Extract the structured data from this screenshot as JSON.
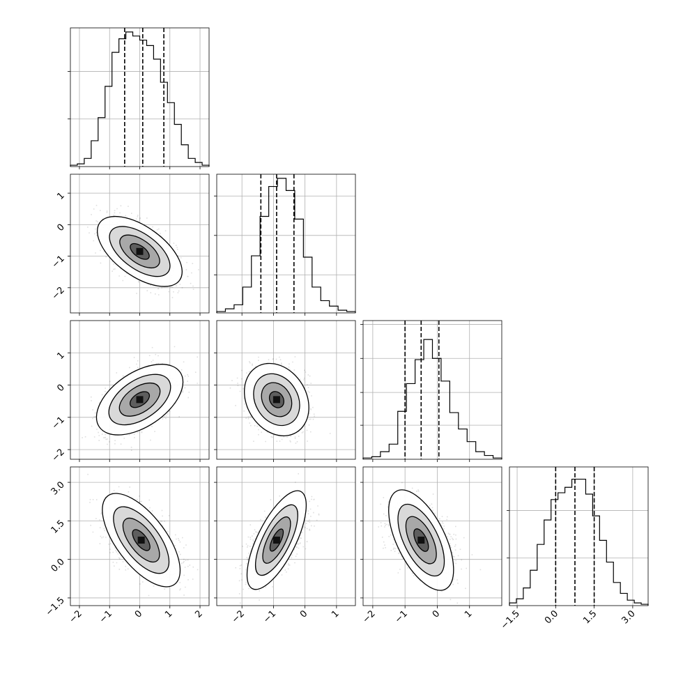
{
  "chart_data": {
    "type": "corner",
    "n_params": 4,
    "quantiles": [
      0.16,
      0.5,
      0.84
    ],
    "grid": true,
    "params": [
      {
        "range": [
          -2.3,
          2.3
        ],
        "ticks": [
          -2,
          -1,
          0,
          1,
          2
        ],
        "tick_labels": [
          "−2",
          "−1",
          "0",
          "1",
          "2"
        ],
        "quantile_values": [
          -0.5,
          0.1,
          0.8
        ],
        "hist": [
          0.01,
          0.02,
          0.06,
          0.19,
          0.36,
          0.59,
          0.84,
          0.94,
          0.99,
          0.96,
          0.93,
          0.89,
          0.79,
          0.62,
          0.47,
          0.31,
          0.16,
          0.06,
          0.03,
          0.01
        ],
        "hist_ylim": [
          0,
          1.02
        ],
        "hist_yticks": [
          0.35,
          0.7
        ]
      },
      {
        "range": [
          -2.8,
          1.6
        ],
        "ticks": [
          -2,
          -1,
          0,
          1
        ],
        "tick_labels": [
          "−2",
          "−1",
          "0",
          "1"
        ],
        "quantile_values": [
          -1.4,
          -0.9,
          -0.35
        ],
        "hist": [
          0.01,
          0.03,
          0.06,
          0.19,
          0.42,
          0.71,
          0.93,
          0.99,
          0.9,
          0.69,
          0.41,
          0.19,
          0.09,
          0.05,
          0.02,
          0.01
        ],
        "hist_ylim": [
          0,
          1.02
        ],
        "hist_yticks": [
          0.28,
          0.57,
          0.86
        ]
      },
      {
        "range": [
          -2.3,
          2.0
        ],
        "ticks": [
          -2,
          -1,
          0,
          1
        ],
        "tick_labels": [
          "−2",
          "−1",
          "0",
          "1"
        ],
        "quantile_values": [
          -1.0,
          -0.5,
          0.05
        ],
        "hist": [
          0.01,
          0.02,
          0.06,
          0.12,
          0.38,
          0.6,
          0.79,
          0.95,
          0.8,
          0.62,
          0.37,
          0.24,
          0.14,
          0.06,
          0.03,
          0.01
        ],
        "hist_ylim": [
          0,
          1.1
        ],
        "hist_yticks": [
          0.27,
          0.53,
          0.8,
          1.07
        ]
      },
      {
        "range": [
          -1.8,
          3.6
        ],
        "ticks": [
          -1.5,
          0.0,
          1.5,
          3.0
        ],
        "tick_labels": [
          "−1.5",
          "0.0",
          "1.5",
          "3.0"
        ],
        "quantile_values": [
          0.0,
          0.75,
          1.5
        ],
        "hist": [
          0.02,
          0.05,
          0.13,
          0.26,
          0.45,
          0.63,
          0.78,
          0.83,
          0.87,
          0.93,
          0.93,
          0.82,
          0.66,
          0.48,
          0.32,
          0.17,
          0.09,
          0.04,
          0.02,
          0.01
        ],
        "hist_ylim": [
          0,
          1.02
        ],
        "hist_yticks": [
          0.35,
          0.7
        ]
      }
    ],
    "pairs": [
      {
        "x": 0,
        "y": 1,
        "mean": [
          0.0,
          -0.85
        ],
        "std": [
          0.6,
          0.5
        ],
        "corr": -0.55
      },
      {
        "x": 0,
        "y": 2,
        "mean": [
          0.0,
          -0.45
        ],
        "std": [
          0.6,
          0.5
        ],
        "corr": 0.45
      },
      {
        "x": 1,
        "y": 2,
        "mean": [
          -0.9,
          -0.45
        ],
        "std": [
          0.45,
          0.5
        ],
        "corr": -0.2
      },
      {
        "x": 0,
        "y": 3,
        "mean": [
          0.05,
          0.75
        ],
        "std": [
          0.6,
          0.7
        ],
        "corr": -0.55
      },
      {
        "x": 1,
        "y": 3,
        "mean": [
          -0.9,
          0.75
        ],
        "std": [
          0.45,
          0.7
        ],
        "corr": 0.6
      },
      {
        "x": 2,
        "y": 3,
        "mean": [
          -0.5,
          0.75
        ],
        "std": [
          0.5,
          0.7
        ],
        "corr": -0.45
      }
    ]
  }
}
